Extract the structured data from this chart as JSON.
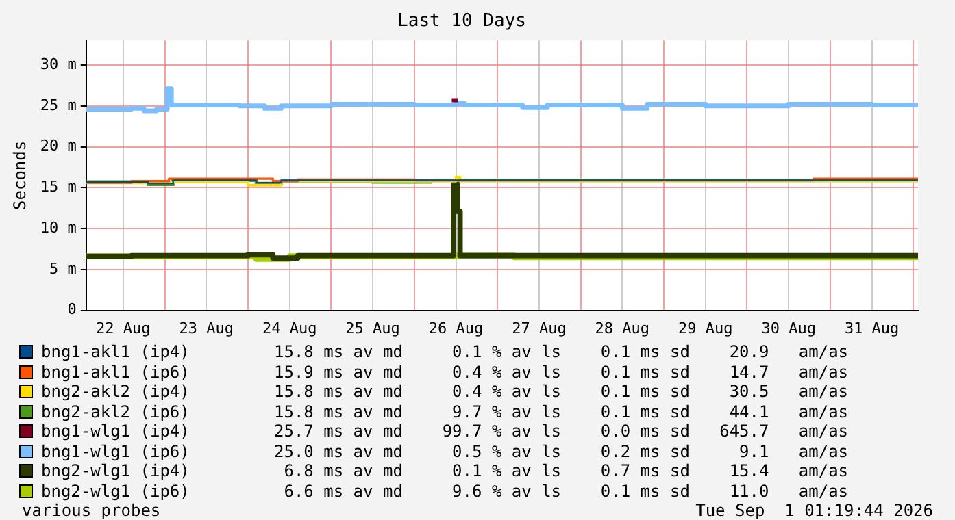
{
  "chart_data": {
    "type": "step",
    "title": "Last 10 Days",
    "ylabel": "Seconds",
    "xlim": [
      "2026-08-22T01:19",
      "2026-09-01T01:19"
    ],
    "xticks": [
      {
        "value": "2026-08-22T12:00",
        "label": "22 Aug"
      },
      {
        "value": "2026-08-23T00:00",
        "label": null
      },
      {
        "value": "2026-08-23T12:00",
        "label": "23 Aug"
      },
      {
        "value": "2026-08-24T00:00",
        "label": null
      },
      {
        "value": "2026-08-24T12:00",
        "label": "24 Aug"
      },
      {
        "value": "2026-08-25T00:00",
        "label": null
      },
      {
        "value": "2026-08-25T12:00",
        "label": "25 Aug"
      },
      {
        "value": "2026-08-26T00:00",
        "label": null
      },
      {
        "value": "2026-08-26T12:00",
        "label": "26 Aug"
      },
      {
        "value": "2026-08-27T00:00",
        "label": null
      },
      {
        "value": "2026-08-27T12:00",
        "label": "27 Aug"
      },
      {
        "value": "2026-08-28T00:00",
        "label": null
      },
      {
        "value": "2026-08-28T12:00",
        "label": "28 Aug"
      },
      {
        "value": "2026-08-29T00:00",
        "label": null
      },
      {
        "value": "2026-08-29T12:00",
        "label": "29 Aug"
      },
      {
        "value": "2026-08-30T00:00",
        "label": null
      },
      {
        "value": "2026-08-30T12:00",
        "label": "30 Aug"
      },
      {
        "value": "2026-08-31T00:00",
        "label": null
      },
      {
        "value": "2026-08-31T12:00",
        "label": "31 Aug"
      },
      {
        "value": "2026-09-01T00:00",
        "label": null
      }
    ],
    "ylim": [
      0,
      33
    ],
    "yticks": [
      0,
      {
        "value": 5,
        "label": "5 m"
      },
      {
        "value": 10,
        "label": "10 m"
      },
      {
        "value": 15,
        "label": "15 m"
      },
      {
        "value": 20,
        "label": "20 m"
      },
      {
        "value": 25,
        "label": "25 m"
      },
      {
        "value": 30,
        "label": "30 m"
      }
    ],
    "grid": true,
    "legend": "bottom",
    "series": [
      {
        "name": "bng1-akl1 (ip4)",
        "color": "#004c8c",
        "x": [
          "2026-08-22T01:19",
          "2026-08-22T19:12",
          "2026-08-23T02:24",
          "2026-08-24T02:24",
          "2026-08-24T09:36",
          "2026-09-01T01:19"
        ],
        "values": [
          15.7,
          15.5,
          15.9,
          15.6,
          15.9,
          15.8
        ]
      },
      {
        "name": "bng1-akl1 (ip6)",
        "color": "#ff5500",
        "x": [
          "2026-08-22T01:19",
          "2026-08-22T14:24",
          "2026-08-23T01:12",
          "2026-08-24T07:12",
          "2026-08-24T14:24",
          "2026-08-26T00:00",
          "2026-08-28T12:00",
          "2026-08-30T19:12",
          "2026-09-01T01:19"
        ],
        "values": [
          15.6,
          15.8,
          16.1,
          15.8,
          16.0,
          15.9,
          15.9,
          16.1,
          16.0
        ]
      },
      {
        "name": "bng2-akl2 (ip4)",
        "color": "#ffdd00",
        "x": [
          "2026-08-22T01:19",
          "2026-08-23T00:00",
          "2026-08-23T02:24",
          "2026-08-24T00:00",
          "2026-08-24T09:36",
          "2026-08-26T12:00",
          "2026-08-26T13:12",
          "2026-09-01T01:19"
        ],
        "values": [
          15.6,
          15.6,
          15.7,
          15.3,
          15.8,
          16.3,
          15.8,
          15.8
        ]
      },
      {
        "name": "bng2-akl2 (ip6)",
        "color": "#4c9a1c",
        "x": [
          "2026-08-22T01:19",
          "2026-08-22T19:12",
          "2026-08-23T02:24",
          "2026-08-24T02:24",
          "2026-08-24T09:36",
          "2026-08-25T12:00",
          "2026-08-26T04:48",
          "2026-09-01T01:19"
        ],
        "values": [
          15.7,
          15.4,
          15.9,
          15.5,
          15.8,
          15.7,
          15.9,
          15.8
        ]
      },
      {
        "name": "bng1-wlg1 (ip4)",
        "color": "#800020",
        "x": [
          "2026-08-26T10:48",
          "2026-08-26T12:29"
        ],
        "values": [
          25.7,
          25.7
        ]
      },
      {
        "name": "bng1-wlg1 (ip6)",
        "color": "#7cbfff",
        "x": [
          "2026-08-22T01:19",
          "2026-08-22T14:24",
          "2026-08-22T18:00",
          "2026-08-22T21:36",
          "2026-08-23T00:43",
          "2026-08-23T01:55",
          "2026-08-23T21:36",
          "2026-08-24T04:48",
          "2026-08-24T09:36",
          "2026-08-25T00:00",
          "2026-08-26T00:00",
          "2026-08-26T12:00",
          "2026-08-26T14:24",
          "2026-08-27T07:12",
          "2026-08-27T14:24",
          "2026-08-28T12:00",
          "2026-08-28T19:12",
          "2026-08-29T12:00",
          "2026-08-30T12:00",
          "2026-08-31T12:00",
          "2026-09-01T01:19"
        ],
        "values": [
          24.6,
          24.7,
          24.4,
          24.6,
          27.1,
          25.1,
          25.0,
          24.7,
          25.0,
          25.2,
          25.1,
          25.3,
          25.1,
          24.8,
          25.1,
          24.7,
          25.2,
          25.0,
          25.2,
          25.1,
          25.1
        ]
      },
      {
        "name": "bng2-wlg1 (ip4)",
        "color": "#2a3a00",
        "x": [
          "2026-08-22T01:19",
          "2026-08-22T14:24",
          "2026-08-24T00:00",
          "2026-08-24T07:12",
          "2026-08-24T14:24",
          "2026-08-26T10:48",
          "2026-08-26T11:17",
          "2026-08-26T12:29",
          "2026-08-26T13:12",
          "2026-09-01T01:19"
        ],
        "values": [
          6.6,
          6.7,
          6.8,
          6.4,
          6.7,
          6.7,
          15.5,
          12.1,
          6.7,
          6.8
        ]
      },
      {
        "name": "bng2-wlg1 (ip6)",
        "color": "#aacc00",
        "x": [
          "2026-08-22T01:19",
          "2026-08-24T02:24",
          "2026-08-24T12:00",
          "2026-08-26T12:00",
          "2026-08-27T04:48",
          "2026-09-01T01:19"
        ],
        "values": [
          6.6,
          6.3,
          6.6,
          6.7,
          6.5,
          6.7
        ]
      }
    ],
    "annotations": [
      "15.8 ms av md     0.1 % av ls    0.1 ms sd    20.9   am/as",
      "15.9 ms av md     0.4 % av ls    0.1 ms sd    14.7   am/as",
      "15.8 ms av md     0.4 % av ls    0.1 ms sd    30.5   am/as",
      "15.8 ms av md     9.7 % av ls    0.1 ms sd    44.1   am/as",
      "25.7 ms av md    99.7 % av ls    0.0 ms sd   645.7   am/as",
      "25.0 ms av md     0.5 % av ls    0.2 ms sd     9.1   am/as",
      " 6.8 ms av md     0.1 % av ls    0.7 ms sd    15.4   am/as",
      " 6.6 ms av md     9.6 % av ls    0.1 ms sd    11.0   am/as",
      "various probes",
      "Tue Sep  1 01:19:44 2026"
    ]
  }
}
